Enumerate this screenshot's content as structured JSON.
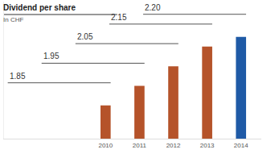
{
  "chart_data": {
    "type": "bar",
    "title": "Dividend per share",
    "subtitle": "In CHF",
    "x": [
      2010,
      2011,
      2012,
      2013,
      2014
    ],
    "values": [
      1.85,
      1.95,
      2.05,
      2.15,
      2.2
    ],
    "value_labels": [
      "1.85",
      "1.95",
      "2.05",
      "2.15",
      "2.20"
    ],
    "colors": [
      "#b5532a",
      "#b5532a",
      "#b5532a",
      "#b5532a",
      "#1f5aa6"
    ],
    "xlim": [
      2007,
      2014.6
    ],
    "xticks": [
      2010,
      2011,
      2012,
      2013,
      2014
    ],
    "ylim": [
      1.68,
      2.38
    ],
    "yticks": [],
    "data_labels": true,
    "tick_labels": "x",
    "grid": false
  }
}
